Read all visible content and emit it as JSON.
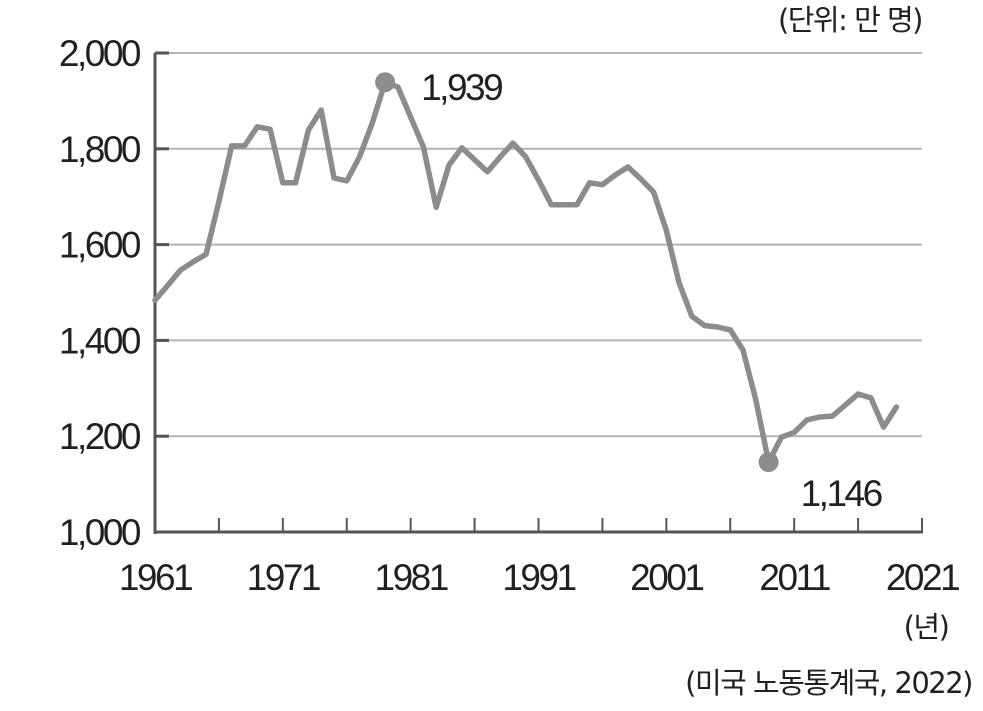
{
  "chart_data": {
    "type": "line",
    "unit_label": "(단위: 만 명)",
    "x_unit_label": "(년)",
    "source": "(미국 노동통계국, 2022)",
    "ylim": [
      1000,
      2000
    ],
    "xlim": [
      1961,
      2021
    ],
    "y_ticks": [
      "1,000",
      "1,200",
      "1,400",
      "1,600",
      "1,800",
      "2,000"
    ],
    "y_tick_values": [
      1000,
      1200,
      1400,
      1600,
      1800,
      2000
    ],
    "x_ticks": [
      "1961",
      "1971",
      "1981",
      "1991",
      "2001",
      "2011",
      "2021"
    ],
    "x_tick_values": [
      1961,
      1971,
      1981,
      1991,
      2001,
      2011,
      2021
    ],
    "grid": "horizontal",
    "line_color": "#8c8c8c",
    "grid_color": "#b4b4b4",
    "x": [
      1961,
      1962,
      1963,
      1964,
      1965,
      1966,
      1967,
      1968,
      1969,
      1970,
      1971,
      1972,
      1973,
      1974,
      1975,
      1976,
      1977,
      1978,
      1979,
      1980,
      1981,
      1982,
      1983,
      1984,
      1985,
      1986,
      1987,
      1988,
      1989,
      1990,
      1991,
      1992,
      1993,
      1994,
      1995,
      1996,
      1997,
      1998,
      1999,
      2000,
      2001,
      2002,
      2003,
      2004,
      2005,
      2006,
      2007,
      2008,
      2009,
      2010,
      2011,
      2012,
      2013,
      2014,
      2015,
      2016,
      2017,
      2018,
      2019
    ],
    "values": [
      1484,
      1515,
      1547,
      1564,
      1580,
      1690,
      1806,
      1806,
      1846,
      1841,
      1729,
      1729,
      1839,
      1881,
      1739,
      1733,
      1783,
      1854,
      1939,
      1929,
      1866,
      1804,
      1678,
      1766,
      1802,
      1777,
      1752,
      1783,
      1812,
      1783,
      1735,
      1683,
      1683,
      1683,
      1729,
      1725,
      1745,
      1762,
      1737,
      1710,
      1630,
      1520,
      1450,
      1431,
      1428,
      1422,
      1380,
      1276,
      1146,
      1198,
      1208,
      1234,
      1240,
      1242,
      1265,
      1288,
      1280,
      1219,
      1261
    ],
    "annotations": [
      {
        "x": 1979,
        "value": 1939,
        "label": "1,939"
      },
      {
        "x": 2009,
        "value": 1146,
        "label": "1,146"
      }
    ]
  }
}
